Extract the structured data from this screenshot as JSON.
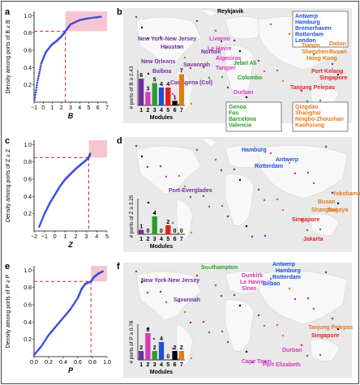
{
  "panels": {
    "a": {
      "letter": "a",
      "ylabel": "Density among ports of B ≥ B",
      "xlabel": "B",
      "xticks": [
        "−1",
        "0",
        "1",
        "2",
        "3",
        "4",
        "5",
        "6",
        "7"
      ],
      "yticks": [
        "0.2",
        "0.4",
        "0.6",
        "0.8",
        "1.0"
      ]
    },
    "c": {
      "letter": "c",
      "ylabel": "Density among ports of Z ≥ Z",
      "xlabel": "Z",
      "xticks": [
        "−2",
        "−1",
        "0",
        "1",
        "2",
        "3",
        "4",
        "5"
      ],
      "yticks": [
        "0.2",
        "0.4",
        "0.6",
        "0.8",
        "1.0"
      ]
    },
    "e": {
      "letter": "e",
      "ylabel": "Density among ports of P ≥ P",
      "xlabel": "P",
      "xticks": [
        "0.0",
        "0.2",
        "0.4",
        "0.6",
        "0.8",
        "1.0"
      ],
      "yticks": [
        "0.2",
        "0.4",
        "0.6",
        "0.8",
        "1.0"
      ]
    },
    "b": {
      "letter": "b",
      "inset_ylabel": "# ports of B ≥ 2.43",
      "inset_xlabel": "Modules",
      "modules": [
        "1",
        "2",
        "3",
        "4",
        "5",
        "6",
        "7"
      ],
      "values": [
        6,
        3,
        5,
        4,
        4,
        1,
        7
      ]
    },
    "d": {
      "letter": "d",
      "inset_ylabel": "# ports of Z ≥ 3.25",
      "inset_xlabel": "Modules",
      "modules": [
        "1",
        "2",
        "3",
        "4",
        "5",
        "6",
        "7"
      ],
      "values": [
        1,
        0,
        4,
        0,
        2,
        0,
        0
      ]
    },
    "f": {
      "letter": "f",
      "inset_ylabel": "# ports of P ≥ 0.78",
      "inset_xlabel": "Modules",
      "modules": [
        "1",
        "2",
        "3",
        "4",
        "5",
        "6",
        "7"
      ],
      "values": [
        2,
        6,
        2,
        4,
        0,
        2,
        2
      ]
    }
  },
  "labels_b": [
    {
      "text": "Reykjavik",
      "color": "#000000"
    },
    {
      "text": "New York-New Jersey",
      "color": "#7030a0"
    },
    {
      "text": "Houston",
      "color": "#7030a0"
    },
    {
      "text": "Norfolk",
      "color": "#7030a0"
    },
    {
      "text": "New Orleans",
      "color": "#7030a0"
    },
    {
      "text": "Savannah",
      "color": "#7030a0"
    },
    {
      "text": "Balboa",
      "color": "#7030a0"
    },
    {
      "text": "Cartagena (Col)",
      "color": "#7030a0"
    },
    {
      "text": "Livorno",
      "color": "#d63ab8"
    },
    {
      "text": "Le Havre",
      "color": "#d63ab8"
    },
    {
      "text": "Algeciras",
      "color": "#d63ab8"
    },
    {
      "text": "Tangier",
      "color": "#d63ab8"
    },
    {
      "text": "Jebel Ali",
      "color": "#2a9d2a"
    },
    {
      "text": "Colombo",
      "color": "#2a9d2a"
    },
    {
      "text": "Antwerp\nHamburg\nBremerhaven\nRotterdam\nLondon",
      "color": "#1f4fd6"
    },
    {
      "text": "Tianjin",
      "color": "#e07b1a"
    },
    {
      "text": "Shenzhen",
      "color": "#e07b1a"
    },
    {
      "text": "Hong Kong",
      "color": "#e07b1a"
    },
    {
      "text": "Dalian",
      "color": "#e07b1a"
    },
    {
      "text": "Busan",
      "color": "#e07b1a"
    },
    {
      "text": "Port Kelang",
      "color": "#e02020"
    },
    {
      "text": "Singapore",
      "color": "#e02020"
    },
    {
      "text": "Tanjung Pelepas",
      "color": "#e02020"
    },
    {
      "text": "Durban",
      "color": "#d63ab8"
    },
    {
      "text": "Genoa\nFos\nBarcelona\nValencia",
      "color": "#2a9d2a"
    },
    {
      "text": "Qingdao\nShanghai\nNingbo-Zhoushan\nKaohsiung",
      "color": "#e07b1a"
    }
  ],
  "labels_d": [
    {
      "text": "Hamburg",
      "color": "#1f4fd6"
    },
    {
      "text": "Antwerp",
      "color": "#1f4fd6"
    },
    {
      "text": "Rotterdam",
      "color": "#1f4fd6"
    },
    {
      "text": "Port-Everglades",
      "color": "#7030a0"
    },
    {
      "text": "Yokohama",
      "color": "#e07b1a"
    },
    {
      "text": "Busan",
      "color": "#e07b1a"
    },
    {
      "text": "Shanghai",
      "color": "#e07b1a"
    },
    {
      "text": "Nagoya",
      "color": "#e07b1a"
    },
    {
      "text": "Singapore",
      "color": "#e02020"
    },
    {
      "text": "Jakarta",
      "color": "#e02020"
    }
  ],
  "labels_f": [
    {
      "text": "Southampton",
      "color": "#2a9d2a"
    },
    {
      "text": "Antwerp",
      "color": "#1f4fd6"
    },
    {
      "text": "Hamburg",
      "color": "#1f4fd6"
    },
    {
      "text": "Rotterdam",
      "color": "#1f4fd6"
    },
    {
      "text": "Bilbao",
      "color": "#1f4fd6"
    },
    {
      "text": "Dunkirk",
      "color": "#d63ab8"
    },
    {
      "text": "Le Havre",
      "color": "#d63ab8"
    },
    {
      "text": "Sines",
      "color": "#d63ab8"
    },
    {
      "text": "New York-New Jersey",
      "color": "#7030a0"
    },
    {
      "text": "Savannah",
      "color": "#7030a0"
    },
    {
      "text": "Tanjung Pelepas",
      "color": "#e07b1a"
    },
    {
      "text": "Singapore",
      "color": "#e02020"
    },
    {
      "text": "Durban",
      "color": "#d63ab8"
    },
    {
      "text": "Cape Town",
      "color": "#d63ab8"
    },
    {
      "text": "Port Elizabeth",
      "color": "#d63ab8"
    }
  ],
  "module_colors": [
    "#7030a0",
    "#d63ab8",
    "#2a9d2a",
    "#1f4fd6",
    "#e02020",
    "#000000",
    "#e07b1a"
  ],
  "accent": "#3b4fe0",
  "threshold_color": "#e02020",
  "shade_color": "#f6c6d0"
}
